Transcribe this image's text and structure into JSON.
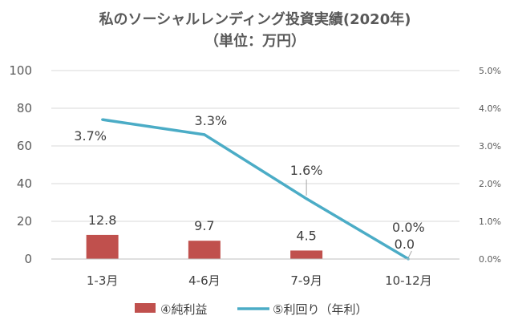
{
  "chart_data": {
    "type": "bar+line",
    "title": "私のソーシャルレンディング投資実績(2020年)",
    "subtitle": "（単位：万円）",
    "categories": [
      "1-3月",
      "4-6月",
      "7-9月",
      "10-12月"
    ],
    "series": [
      {
        "name": "④純利益",
        "type": "bar",
        "axis": "left",
        "values": [
          12.8,
          9.7,
          4.5,
          0.0
        ],
        "labels": [
          "12.8",
          "9.7",
          "4.5",
          "0.0"
        ],
        "color": "#c0504d"
      },
      {
        "name": "⑤利回り（年利）",
        "type": "line",
        "axis": "right",
        "values": [
          0.037,
          0.033,
          0.016,
          0.0
        ],
        "labels": [
          "3.7%",
          "3.3%",
          "1.6%",
          "0.0%"
        ],
        "color": "#4bacc6"
      }
    ],
    "ylim": [
      0,
      100
    ],
    "yticks": [
      "0",
      "20",
      "40",
      "60",
      "80",
      "100"
    ],
    "y2lim": [
      0,
      0.05
    ],
    "y2ticks": [
      "0.0%",
      "1.0%",
      "2.0%",
      "3.0%",
      "4.0%",
      "5.0%"
    ],
    "grid": true,
    "legend_position": "bottom"
  }
}
